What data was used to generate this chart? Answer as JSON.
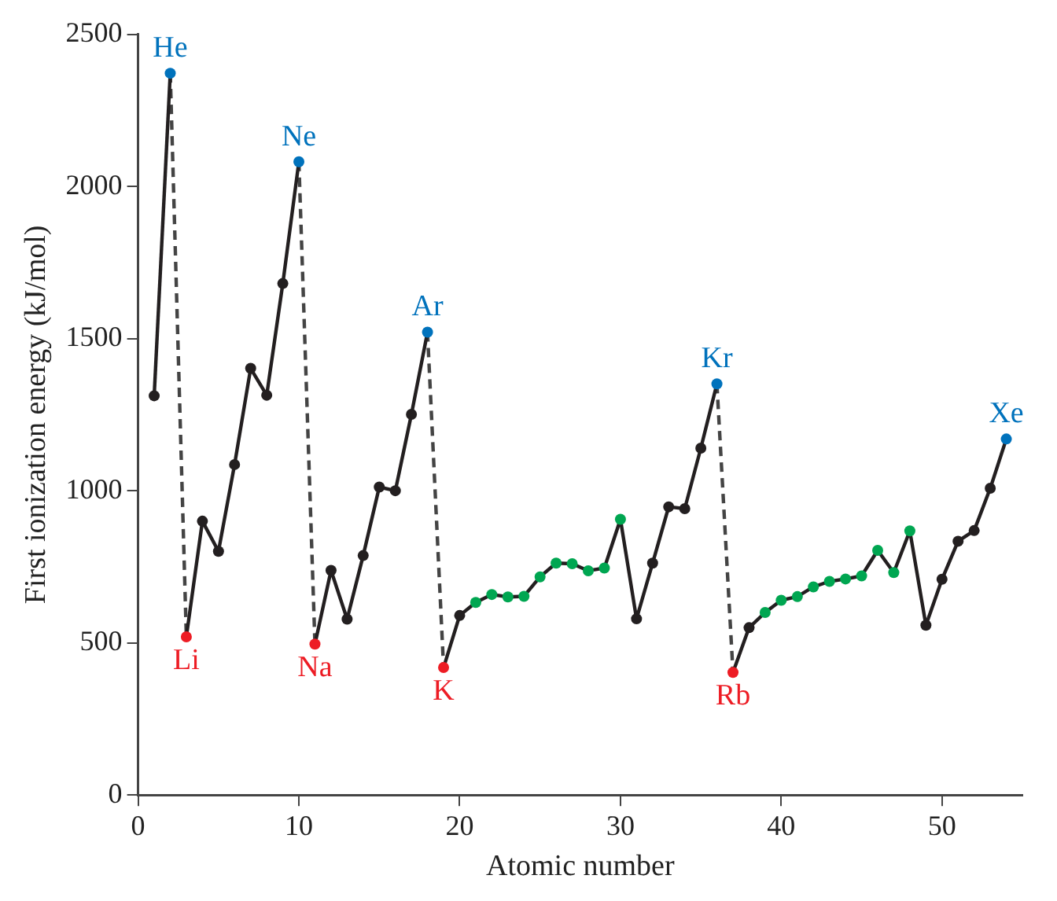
{
  "chart_data": {
    "type": "line",
    "xlabel": "Atomic number",
    "ylabel": "First ionization energy (kJ/mol)",
    "xlim": [
      0,
      55
    ],
    "xticks": [
      0,
      10,
      20,
      30,
      40,
      50
    ],
    "ylim": [
      0,
      2500
    ],
    "yticks": [
      0,
      500,
      1000,
      1500,
      2000,
      2500
    ],
    "marker": "circle",
    "series": [
      {
        "color": "#231f20",
        "x": [
          1,
          2
        ],
        "values": [
          1312,
          2372
        ],
        "colors": [
          "#231f20",
          "#0072bc"
        ]
      },
      {
        "color": "#231f20",
        "x": [
          3,
          4,
          5,
          6,
          7,
          8,
          9,
          10
        ],
        "values": [
          520,
          900,
          801,
          1086,
          1402,
          1314,
          1681,
          2081
        ],
        "colors": [
          "#ed1c24",
          "#231f20",
          "#231f20",
          "#231f20",
          "#231f20",
          "#231f20",
          "#231f20",
          "#0072bc"
        ]
      },
      {
        "color": "#231f20",
        "x": [
          11,
          12,
          13,
          14,
          15,
          16,
          17,
          18
        ],
        "values": [
          496,
          738,
          578,
          787,
          1012,
          1000,
          1251,
          1521
        ],
        "colors": [
          "#ed1c24",
          "#231f20",
          "#231f20",
          "#231f20",
          "#231f20",
          "#231f20",
          "#231f20",
          "#0072bc"
        ]
      },
      {
        "color": "#231f20",
        "x": [
          19,
          20,
          21,
          22,
          23,
          24,
          25,
          26,
          27,
          28,
          29,
          30,
          31,
          32,
          33,
          34,
          35,
          36
        ],
        "values": [
          419,
          590,
          633,
          659,
          651,
          653,
          717,
          762,
          760,
          737,
          746,
          906,
          579,
          762,
          947,
          941,
          1140,
          1351
        ],
        "colors": [
          "#ed1c24",
          "#231f20",
          "#00a651",
          "#00a651",
          "#00a651",
          "#00a651",
          "#00a651",
          "#00a651",
          "#00a651",
          "#00a651",
          "#00a651",
          "#00a651",
          "#231f20",
          "#231f20",
          "#231f20",
          "#231f20",
          "#231f20",
          "#0072bc"
        ]
      },
      {
        "color": "#231f20",
        "x": [
          37,
          38,
          39,
          40,
          41,
          42,
          43,
          44,
          45,
          46,
          47,
          48,
          49,
          50,
          51,
          52,
          53,
          54
        ],
        "values": [
          403,
          550,
          600,
          640,
          652,
          684,
          702,
          710,
          720,
          804,
          731,
          868,
          558,
          709,
          834,
          869,
          1008,
          1170
        ],
        "colors": [
          "#ed1c24",
          "#231f20",
          "#00a651",
          "#00a651",
          "#00a651",
          "#00a651",
          "#00a651",
          "#00a651",
          "#00a651",
          "#00a651",
          "#00a651",
          "#00a651",
          "#231f20",
          "#231f20",
          "#231f20",
          "#231f20",
          "#231f20",
          "#0072bc"
        ]
      },
      {
        "color": "#444444",
        "x": [
          2,
          3
        ],
        "values": [
          2372,
          520
        ],
        "line_style": "dashed",
        "marker": "none"
      },
      {
        "color": "#444444",
        "x": [
          10,
          11
        ],
        "values": [
          2081,
          496
        ],
        "line_style": "dashed",
        "marker": "none"
      },
      {
        "color": "#444444",
        "x": [
          18,
          19
        ],
        "values": [
          1521,
          419
        ],
        "line_style": "dashed",
        "marker": "none"
      },
      {
        "color": "#444444",
        "x": [
          36,
          37
        ],
        "values": [
          1351,
          403
        ],
        "line_style": "dashed",
        "marker": "none"
      }
    ],
    "annotations": [
      {
        "text": "He",
        "x": 2,
        "y": 2372
      },
      {
        "text": "Li",
        "x": 3,
        "y": 520
      },
      {
        "text": "Ne",
        "x": 10,
        "y": 2081
      },
      {
        "text": "Na",
        "x": 11,
        "y": 496
      },
      {
        "text": "Ar",
        "x": 18,
        "y": 1521
      },
      {
        "text": "K",
        "x": 19,
        "y": 419
      },
      {
        "text": "Kr",
        "x": 36,
        "y": 1351
      },
      {
        "text": "Rb",
        "x": 37,
        "y": 403
      },
      {
        "text": "Xe",
        "x": 54,
        "y": 1170
      }
    ]
  }
}
